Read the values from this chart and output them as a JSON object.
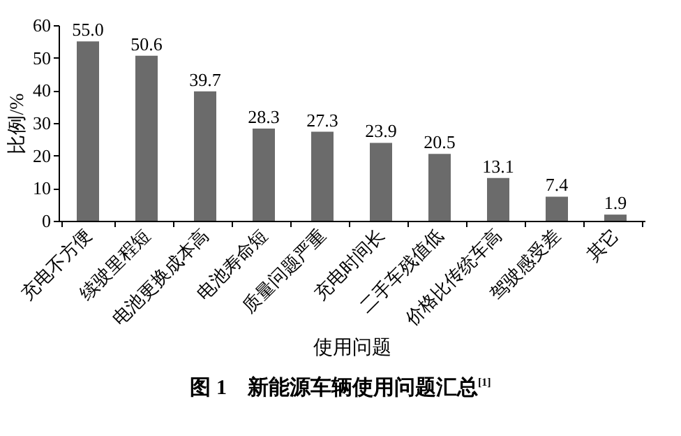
{
  "chart_data": {
    "type": "bar",
    "title": "图 1　新能源车辆使用问题汇总$^{[1]}$",
    "xlabel": "使用问题",
    "ylabel": "比例/%",
    "categories": [
      "充电不方便",
      "续驶里程短",
      "电池更换成本高",
      "电池寿命短",
      "质量问题严重",
      "充电时间长",
      "二手车残值低",
      "价格比传统车高",
      "驾驶感受差",
      "其它"
    ],
    "values": [
      55.0,
      50.6,
      39.7,
      28.3,
      27.3,
      23.9,
      20.5,
      13.1,
      7.4,
      1.9
    ],
    "color": "#6b6b6b",
    "ylim": [
      0,
      60
    ],
    "yticks": [
      0,
      10,
      20,
      30,
      40,
      50,
      60
    ],
    "grid": false,
    "value_labels": [
      "55.0",
      "50.6",
      "39.7",
      "28.3",
      "27.3",
      "23.9",
      "20.5",
      "13.1",
      "7.4",
      "1.9"
    ]
  }
}
